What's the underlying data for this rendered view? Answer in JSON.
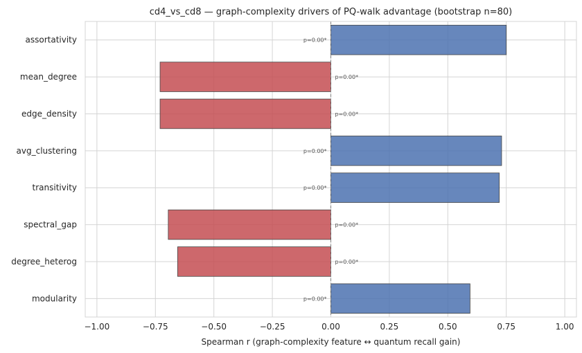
{
  "chart_data": {
    "type": "bar",
    "orientation": "horizontal",
    "title": "cd4_vs_cd8 — graph-complexity drivers of PQ-walk advantage  (bootstrap n=80)",
    "xlabel": "Spearman r  (graph-complexity feature ↔ quantum recall gain)",
    "ylabel": "",
    "xlim": [
      -1.05,
      1.05
    ],
    "xticks": [
      -1.0,
      -0.75,
      -0.5,
      -0.25,
      0.0,
      0.25,
      0.5,
      0.75,
      1.0
    ],
    "xtick_labels": [
      "−1.00",
      "−0.75",
      "−0.50",
      "−0.25",
      "0.00",
      "0.25",
      "0.50",
      "0.75",
      "1.00"
    ],
    "grid": true,
    "categories": [
      "assortativity",
      "mean_degree",
      "edge_density",
      "avg_clustering",
      "transitivity",
      "spectral_gap",
      "degree_heterog",
      "modularity"
    ],
    "values": [
      0.75,
      -0.73,
      -0.73,
      0.73,
      0.72,
      -0.695,
      -0.655,
      0.595
    ],
    "annotations": [
      "p=0.00*",
      "p=0.00*",
      "p=0.00*",
      "p=0.00*",
      "p=0.00*",
      "p=0.00*",
      "p=0.00*",
      "p=0.00*"
    ],
    "colors": {
      "positive": "#4c72b0",
      "negative": "#c44e52"
    }
  }
}
